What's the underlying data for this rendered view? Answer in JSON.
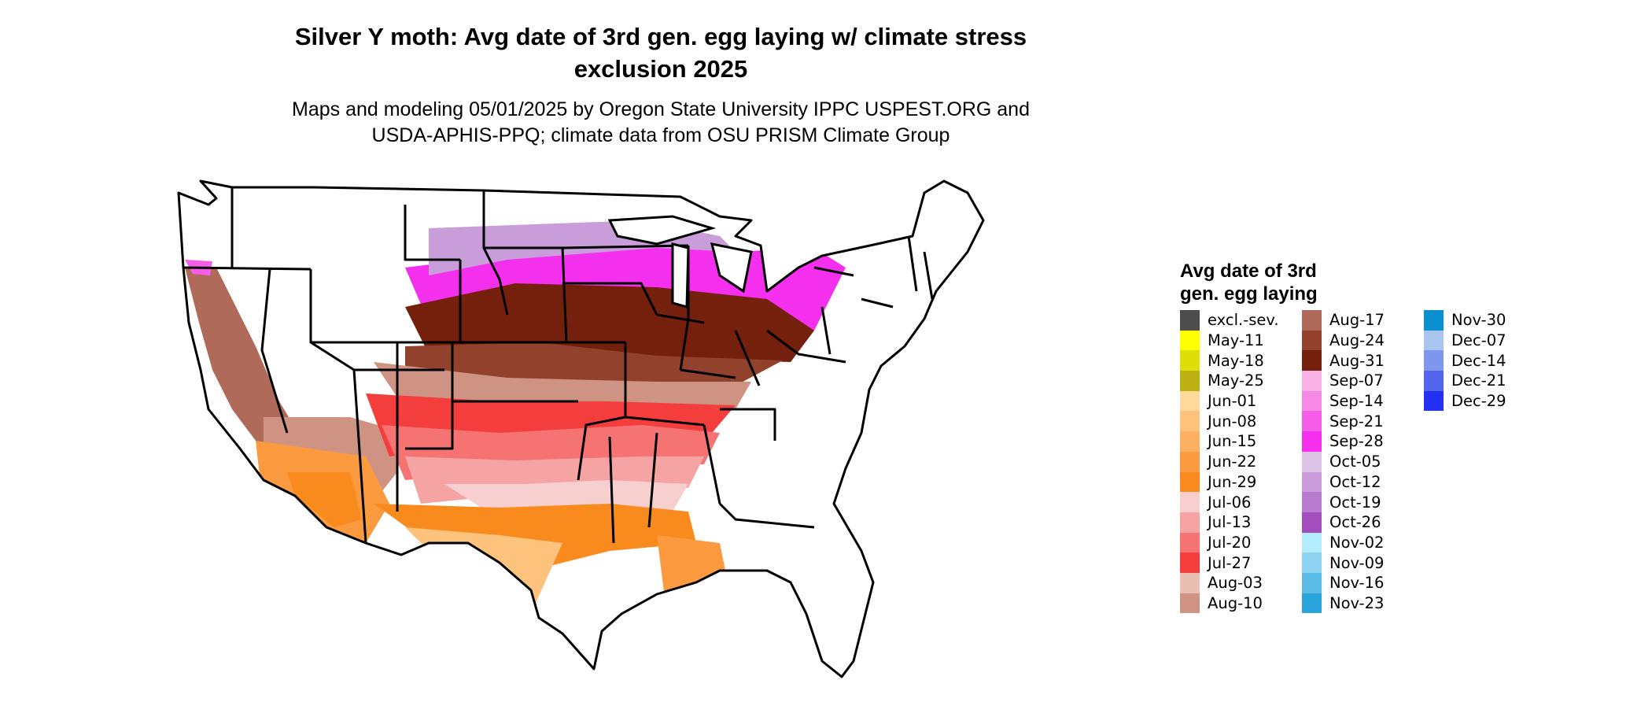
{
  "title_line1": "Silver Y moth: Avg date of 3rd gen. egg laying w/ climate stress",
  "title_line2": "exclusion 2025",
  "subtitle_line1": "Maps and modeling 05/01/2025 by Oregon State University IPPC USPEST.ORG and",
  "subtitle_line2": "USDA-APHIS-PPQ; climate data from OSU PRISM Climate Group",
  "legend": {
    "title_line1": "Avg date of 3rd",
    "title_line2": "gen. egg laying",
    "items": [
      {
        "label": "excl.-sev.",
        "color": "#4d4d4d"
      },
      {
        "label": "May-11",
        "color": "#ffff00"
      },
      {
        "label": "May-18",
        "color": "#dede08"
      },
      {
        "label": "May-25",
        "color": "#bdb012"
      },
      {
        "label": "Jun-01",
        "color": "#fdd99b"
      },
      {
        "label": "Jun-08",
        "color": "#fdc27c"
      },
      {
        "label": "Jun-15",
        "color": "#fdb062"
      },
      {
        "label": "Jun-22",
        "color": "#fc9a3f"
      },
      {
        "label": "Jun-29",
        "color": "#f98a1e"
      },
      {
        "label": "Jul-06",
        "color": "#f8cfcf"
      },
      {
        "label": "Jul-13",
        "color": "#f6a3a3"
      },
      {
        "label": "Jul-20",
        "color": "#f57373"
      },
      {
        "label": "Jul-27",
        "color": "#f43d3d"
      },
      {
        "label": "Aug-03",
        "color": "#e7c0b3"
      },
      {
        "label": "Aug-10",
        "color": "#cf9384"
      },
      {
        "label": "Aug-17",
        "color": "#b06a5a"
      },
      {
        "label": "Aug-24",
        "color": "#92412c"
      },
      {
        "label": "Aug-31",
        "color": "#74200c"
      },
      {
        "label": "Sep-07",
        "color": "#f9b1e5"
      },
      {
        "label": "Sep-14",
        "color": "#f789e6"
      },
      {
        "label": "Sep-21",
        "color": "#f65ee9"
      },
      {
        "label": "Sep-28",
        "color": "#f52fee"
      },
      {
        "label": "Oct-05",
        "color": "#dcc3e6"
      },
      {
        "label": "Oct-12",
        "color": "#c99dda"
      },
      {
        "label": "Oct-19",
        "color": "#b77bcf"
      },
      {
        "label": "Oct-26",
        "color": "#a24fbd"
      },
      {
        "label": "Nov-02",
        "color": "#b3ecff"
      },
      {
        "label": "Nov-09",
        "color": "#8ed3f2"
      },
      {
        "label": "Nov-16",
        "color": "#5bbde6"
      },
      {
        "label": "Nov-23",
        "color": "#2aa5db"
      },
      {
        "label": "Nov-30",
        "color": "#0a8fd1"
      },
      {
        "label": "Dec-07",
        "color": "#a9c4ef"
      },
      {
        "label": "Dec-14",
        "color": "#7e97ee"
      },
      {
        "label": "Dec-21",
        "color": "#5166ec"
      },
      {
        "label": "Dec-29",
        "color": "#2331f5"
      }
    ]
  }
}
